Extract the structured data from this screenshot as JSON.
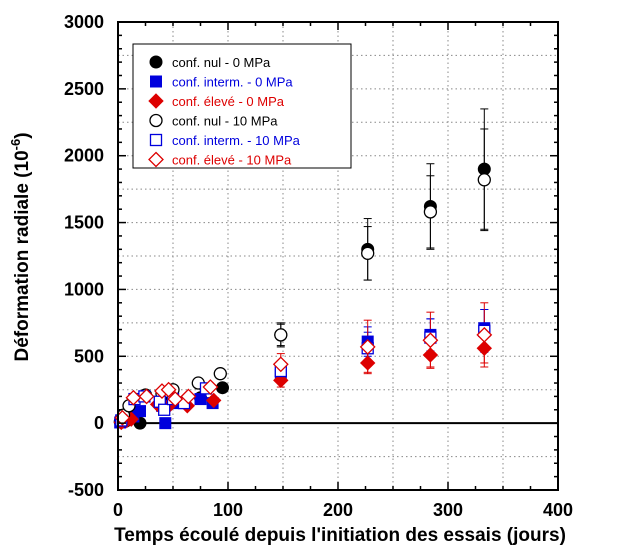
{
  "chart_data": {
    "type": "scatter",
    "title": "",
    "xlabel": "Temps écoulé depuis l'initiation des essais (jours)",
    "ylabel": "Déformation radiale (10",
    "ylabel_exponent": "-6",
    "ylabel_suffix": ")",
    "xlim": [
      0,
      400
    ],
    "ylim": [
      -500,
      3000
    ],
    "x_ticks": [
      "0",
      "100",
      "200",
      "300",
      "400"
    ],
    "y_ticks": [
      "-500",
      "0",
      "500",
      "1000",
      "1500",
      "2000",
      "2500",
      "3000"
    ],
    "grid": "dotted",
    "legend_position": "top-left",
    "reference_line_y": 0,
    "series": [
      {
        "name": "conf. nul - 0 MPa",
        "color": "#000000",
        "marker": "circle-filled",
        "points": [
          [
            2,
            10
          ],
          [
            7,
            15
          ],
          [
            20,
            0
          ],
          [
            45,
            140
          ],
          [
            60,
            160
          ],
          [
            75,
            190
          ],
          [
            95,
            265
          ],
          [
            148,
            660
          ],
          [
            227,
            1300
          ],
          [
            284,
            1620
          ],
          [
            333,
            1900
          ]
        ],
        "errors": [
          0,
          0,
          0,
          0,
          0,
          0,
          0,
          80,
          230,
          320,
          450
        ]
      },
      {
        "name": "conf. interm. - 0 MPa",
        "color": "#0000dd",
        "marker": "square-filled",
        "points": [
          [
            2,
            5
          ],
          [
            8,
            30
          ],
          [
            14,
            50
          ],
          [
            20,
            90
          ],
          [
            40,
            130
          ],
          [
            43,
            0
          ],
          [
            55,
            150
          ],
          [
            75,
            180
          ],
          [
            86,
            150
          ],
          [
            148,
            360
          ],
          [
            227,
            610
          ],
          [
            284,
            660
          ],
          [
            333,
            710
          ]
        ],
        "errors": [
          0,
          0,
          0,
          0,
          0,
          0,
          0,
          0,
          0,
          60,
          110,
          120,
          140
        ]
      },
      {
        "name": "conf. élevé - 0 MPa",
        "color": "#dd0000",
        "marker": "diamond-filled",
        "points": [
          [
            3,
            5
          ],
          [
            8,
            20
          ],
          [
            12,
            30
          ],
          [
            36,
            140
          ],
          [
            45,
            120
          ],
          [
            63,
            130
          ],
          [
            87,
            170
          ],
          [
            148,
            320
          ],
          [
            227,
            450
          ],
          [
            284,
            510
          ],
          [
            333,
            560
          ]
        ],
        "errors": [
          0,
          0,
          0,
          0,
          0,
          0,
          0,
          50,
          70,
          90,
          110
        ]
      },
      {
        "name": "conf. nul - 10 MPa",
        "color": "#000000",
        "marker": "circle-open",
        "points": [
          [
            5,
            60
          ],
          [
            10,
            130
          ],
          [
            25,
            210
          ],
          [
            40,
            220
          ],
          [
            50,
            250
          ],
          [
            73,
            300
          ],
          [
            93,
            370
          ],
          [
            148,
            660
          ],
          [
            227,
            1270
          ],
          [
            284,
            1580
          ],
          [
            333,
            1820
          ]
        ],
        "errors": [
          0,
          0,
          0,
          0,
          0,
          0,
          0,
          90,
          200,
          270,
          380
        ]
      },
      {
        "name": "conf. interm. - 10 MPa",
        "color": "#0000dd",
        "marker": "square-open",
        "points": [
          [
            3,
            20
          ],
          [
            15,
            180
          ],
          [
            24,
            200
          ],
          [
            38,
            160
          ],
          [
            42,
            100
          ],
          [
            50,
            180
          ],
          [
            60,
            150
          ],
          [
            80,
            260
          ],
          [
            148,
            390
          ],
          [
            227,
            560
          ],
          [
            284,
            640
          ],
          [
            333,
            690
          ]
        ],
        "errors": [
          0,
          0,
          0,
          0,
          0,
          0,
          0,
          0,
          60,
          120,
          140,
          160
        ]
      },
      {
        "name": "conf. élevé - 10 MPa",
        "color": "#dd0000",
        "marker": "diamond-open",
        "points": [
          [
            4,
            40
          ],
          [
            14,
            190
          ],
          [
            26,
            200
          ],
          [
            40,
            240
          ],
          [
            46,
            250
          ],
          [
            52,
            180
          ],
          [
            64,
            200
          ],
          [
            84,
            270
          ],
          [
            148,
            440
          ],
          [
            227,
            570
          ],
          [
            284,
            620
          ],
          [
            333,
            660
          ]
        ],
        "errors": [
          0,
          0,
          0,
          0,
          0,
          0,
          0,
          0,
          80,
          200,
          210,
          240
        ]
      }
    ]
  }
}
